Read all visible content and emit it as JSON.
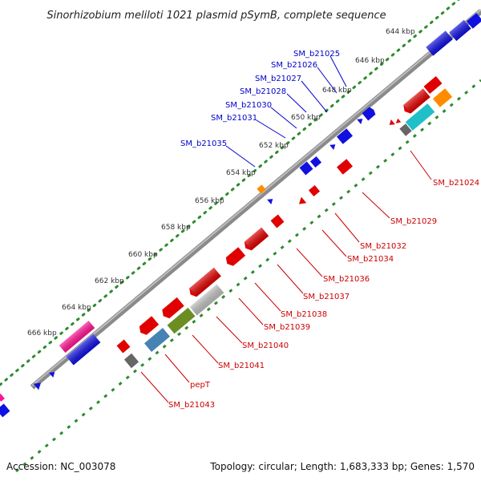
{
  "title": "Sinorhizobium meliloti 1021 plasmid pSymB, complete sequence",
  "footer": {
    "accession": "Accession: NC_003078",
    "summary": "Topology: circular; Length: 1,683,333 bp; Genes: 1,570"
  },
  "colors": {
    "backbone": "#8a8a8a",
    "tick_dots": "#2e8b2e",
    "forward_gene": "#1010e0",
    "reverse_gene": "#e00000",
    "forward_label": "#0000cc",
    "reverse_label": "#cc0000",
    "misc_orange": "#ff8c00",
    "misc_pink": "#ff1493",
    "misc_cyan": "#20c0c8",
    "misc_olive": "#6b8e23",
    "misc_steel": "#4682b4",
    "misc_grey": "#666666",
    "misc_silver": "#c0c0c0"
  },
  "ticks": [
    "644 kbp",
    "646 kbp",
    "648 kbp",
    "650 kbp",
    "652 kbp",
    "654 kbp",
    "656 kbp",
    "658 kbp",
    "660 kbp",
    "662 kbp",
    "664 kbp",
    "666 kbp"
  ],
  "forward_labels": [
    "SM_b21025",
    "SM_b21026",
    "SM_b21027",
    "SM_b21028",
    "SM_b21030",
    "SM_b21031",
    "SM_b21035"
  ],
  "reverse_labels": [
    "SM_b21024",
    "SM_b21029",
    "SM_b21032",
    "SM_b21034",
    "SM_b21036",
    "SM_b21037",
    "SM_b21038",
    "SM_b21039",
    "SM_b21040",
    "SM_b21041",
    "pepT",
    "SM_b21043"
  ]
}
